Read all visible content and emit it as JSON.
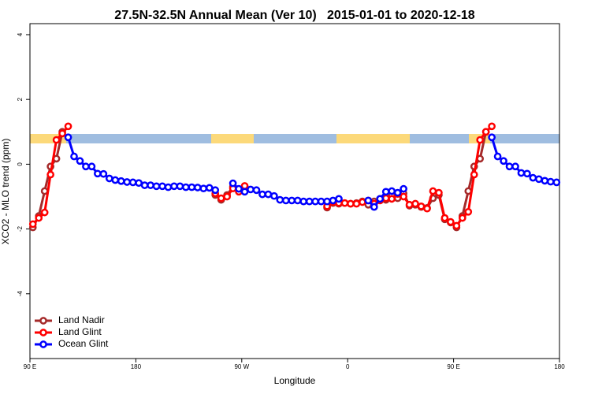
{
  "chart_data": {
    "type": "line",
    "title": "27.5N-32.5N Annual Mean (Ver 10)   2015-01-01 to 2020-12-18",
    "x_label": "Longitude",
    "y_label": "XCO2 - MLO trend (ppm)",
    "x": [
      92.5,
      97.5,
      102.5,
      107.5,
      112.5,
      117.5,
      122.5,
      127.5,
      132.5,
      137.5,
      142.5,
      147.5,
      152.5,
      157.5,
      162.5,
      167.5,
      172.5,
      177.5,
      182.5,
      187.5,
      192.5,
      197.5,
      202.5,
      207.5,
      212.5,
      217.5,
      222.5,
      227.5,
      232.5,
      237.5,
      242.5,
      247.5,
      252.5,
      257.5,
      262.5,
      267.5,
      272.5,
      277.5,
      282.5,
      287.5,
      292.5,
      297.5,
      302.5,
      307.5,
      312.5,
      317.5,
      322.5,
      327.5,
      332.5,
      337.5,
      342.5,
      347.5,
      352.5,
      357.5,
      362.5,
      367.5,
      372.5,
      377.5,
      382.5,
      387.5,
      392.5,
      397.5,
      402.5,
      407.5,
      412.5,
      417.5,
      422.5,
      427.5,
      432.5,
      437.5,
      442.5,
      447.5,
      452.5,
      457.5,
      462.5,
      467.5,
      472.5,
      477.5,
      482.5,
      487.5,
      492.5,
      497.5,
      502.5,
      507.5,
      512.5,
      517.5,
      522.5,
      527.5,
      532.5,
      537.5
    ],
    "series": [
      {
        "name": "Land Nadir",
        "color": "#a52a2a",
        "values": [
          -1.95,
          -1.6,
          -0.83,
          -0.07,
          0.17,
          1.0,
          null,
          null,
          null,
          null,
          null,
          null,
          null,
          null,
          null,
          null,
          null,
          null,
          null,
          null,
          null,
          null,
          null,
          null,
          null,
          null,
          null,
          null,
          null,
          null,
          null,
          -0.95,
          -1.1,
          -0.95,
          -0.7,
          -0.8,
          -0.7,
          null,
          null,
          null,
          null,
          null,
          null,
          null,
          null,
          null,
          null,
          null,
          null,
          null,
          -1.34,
          -1.2,
          -1.22,
          -1.2,
          -1.22,
          -1.2,
          -1.15,
          -1.25,
          -1.15,
          -1.07,
          -1.1,
          -0.95,
          -1.05,
          -0.9,
          -1.28,
          -1.25,
          -1.32,
          -1.35,
          -1.05,
          -0.95,
          -1.7,
          -1.8,
          -1.95,
          -1.6,
          -0.83,
          -0.07,
          0.17,
          1.0,
          null,
          null,
          null,
          null,
          null,
          null,
          null,
          null,
          null,
          null,
          null,
          null
        ]
      },
      {
        "name": "Land Glint",
        "color": "#ff0000",
        "values": [
          -1.85,
          -1.66,
          -1.49,
          -0.32,
          0.75,
          0.95,
          1.17,
          null,
          null,
          null,
          null,
          null,
          null,
          null,
          null,
          null,
          null,
          null,
          null,
          null,
          null,
          null,
          null,
          null,
          null,
          null,
          null,
          null,
          null,
          null,
          null,
          -0.9,
          -1.05,
          -1.0,
          -0.75,
          -0.85,
          -0.67,
          null,
          null,
          null,
          null,
          null,
          null,
          null,
          null,
          null,
          null,
          null,
          null,
          null,
          -1.3,
          -1.17,
          -1.2,
          -1.2,
          -1.22,
          -1.22,
          -1.17,
          -1.12,
          -1.22,
          -1.12,
          -1.05,
          -1.07,
          -0.92,
          -1.0,
          -1.25,
          -1.22,
          -1.3,
          -1.37,
          -0.83,
          -0.88,
          -1.66,
          -1.78,
          -1.9,
          -1.66,
          -1.47,
          -0.32,
          0.75,
          1.0,
          1.17,
          null,
          null,
          null,
          null,
          null,
          null,
          null,
          null,
          null,
          null,
          null
        ]
      },
      {
        "name": "Ocean Glint",
        "color": "#0000ff",
        "values": [
          null,
          null,
          null,
          null,
          null,
          null,
          0.83,
          0.24,
          0.1,
          -0.07,
          -0.07,
          -0.29,
          -0.3,
          -0.44,
          -0.49,
          -0.52,
          -0.55,
          -0.56,
          -0.58,
          -0.65,
          -0.65,
          -0.68,
          -0.68,
          -0.71,
          -0.68,
          -0.68,
          -0.71,
          -0.71,
          -0.72,
          -0.75,
          -0.73,
          -0.8,
          null,
          null,
          -0.59,
          -0.76,
          -0.85,
          -0.78,
          -0.8,
          -0.93,
          -0.93,
          -0.98,
          -1.1,
          -1.12,
          -1.12,
          -1.12,
          -1.15,
          -1.15,
          -1.15,
          -1.15,
          -1.15,
          -1.12,
          -1.07,
          null,
          null,
          null,
          null,
          -1.12,
          -1.32,
          -1.07,
          -0.85,
          -0.83,
          -0.88,
          -0.76,
          null,
          null,
          null,
          null,
          null,
          null,
          null,
          null,
          null,
          null,
          null,
          null,
          null,
          null,
          0.83,
          0.24,
          0.1,
          -0.07,
          -0.07,
          -0.27,
          -0.29,
          -0.42,
          -0.46,
          -0.51,
          -0.54,
          -0.56
        ]
      }
    ],
    "xlim": [
      90,
      540
    ],
    "xticks": [
      {
        "value": 90,
        "label": "90 E"
      },
      {
        "value": 180,
        "label": "180"
      },
      {
        "value": 270,
        "label": "90 W"
      },
      {
        "value": 360,
        "label": "0"
      },
      {
        "value": 450,
        "label": "90 E"
      },
      {
        "value": 540,
        "label": "180"
      }
    ],
    "ylim": [
      -6,
      4.34
    ],
    "yticks": [
      -4,
      -2,
      0,
      2,
      4
    ],
    "legend": "lower left"
  }
}
